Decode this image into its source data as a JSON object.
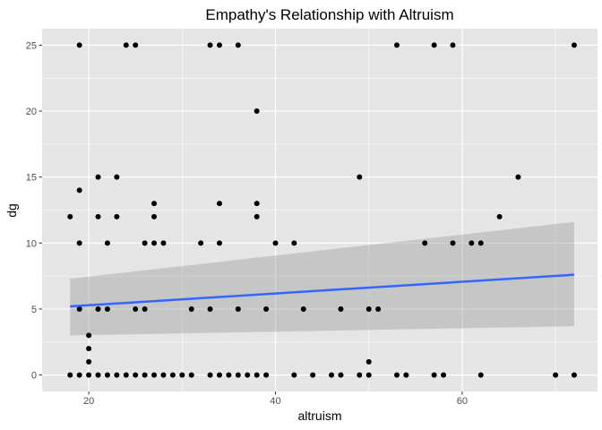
{
  "chart_data": {
    "type": "scatter",
    "title": "Empathy's Relationship with Altruism",
    "xlabel": "altruism",
    "ylabel": "dg",
    "xlim": [
      15,
      74.5
    ],
    "ylim": [
      -1.25,
      26.25
    ],
    "x_ticks": [
      20,
      40,
      60
    ],
    "y_ticks": [
      0,
      5,
      10,
      15,
      20,
      25
    ],
    "grid": true,
    "legend": "none",
    "colors": {
      "panel": "#e5e5e5",
      "grid_major": "#ffffff",
      "point": "#000000",
      "fit_line": "#3366ff",
      "ribbon": "#999999"
    },
    "points": [
      {
        "x": 18,
        "y": 12
      },
      {
        "x": 18,
        "y": 0
      },
      {
        "x": 19,
        "y": 25
      },
      {
        "x": 19,
        "y": 14
      },
      {
        "x": 19,
        "y": 10
      },
      {
        "x": 19,
        "y": 5
      },
      {
        "x": 19,
        "y": 0
      },
      {
        "x": 20,
        "y": 3
      },
      {
        "x": 20,
        "y": 2
      },
      {
        "x": 20,
        "y": 1
      },
      {
        "x": 20,
        "y": 0
      },
      {
        "x": 21,
        "y": 15
      },
      {
        "x": 21,
        "y": 12
      },
      {
        "x": 21,
        "y": 5
      },
      {
        "x": 21,
        "y": 0
      },
      {
        "x": 22,
        "y": 10
      },
      {
        "x": 22,
        "y": 5
      },
      {
        "x": 22,
        "y": 0
      },
      {
        "x": 23,
        "y": 15
      },
      {
        "x": 23,
        "y": 12
      },
      {
        "x": 23,
        "y": 0
      },
      {
        "x": 24,
        "y": 25
      },
      {
        "x": 24,
        "y": 0
      },
      {
        "x": 25,
        "y": 25
      },
      {
        "x": 25,
        "y": 5
      },
      {
        "x": 25,
        "y": 0
      },
      {
        "x": 26,
        "y": 10
      },
      {
        "x": 26,
        "y": 5
      },
      {
        "x": 26,
        "y": 0
      },
      {
        "x": 27,
        "y": 13
      },
      {
        "x": 27,
        "y": 12
      },
      {
        "x": 27,
        "y": 10
      },
      {
        "x": 27,
        "y": 0
      },
      {
        "x": 28,
        "y": 10
      },
      {
        "x": 28,
        "y": 0
      },
      {
        "x": 29,
        "y": 0
      },
      {
        "x": 30,
        "y": 0
      },
      {
        "x": 31,
        "y": 5
      },
      {
        "x": 31,
        "y": 0
      },
      {
        "x": 32,
        "y": 10
      },
      {
        "x": 33,
        "y": 25
      },
      {
        "x": 33,
        "y": 5
      },
      {
        "x": 33,
        "y": 0
      },
      {
        "x": 34,
        "y": 25
      },
      {
        "x": 34,
        "y": 13
      },
      {
        "x": 34,
        "y": 10
      },
      {
        "x": 34,
        "y": 0
      },
      {
        "x": 35,
        "y": 0
      },
      {
        "x": 36,
        "y": 25
      },
      {
        "x": 36,
        "y": 5
      },
      {
        "x": 36,
        "y": 0
      },
      {
        "x": 37,
        "y": 0
      },
      {
        "x": 38,
        "y": 20
      },
      {
        "x": 38,
        "y": 13
      },
      {
        "x": 38,
        "y": 12
      },
      {
        "x": 38,
        "y": 0
      },
      {
        "x": 39,
        "y": 5
      },
      {
        "x": 39,
        "y": 0
      },
      {
        "x": 40,
        "y": 10
      },
      {
        "x": 42,
        "y": 10
      },
      {
        "x": 42,
        "y": 0
      },
      {
        "x": 43,
        "y": 5
      },
      {
        "x": 44,
        "y": 0
      },
      {
        "x": 46,
        "y": 0
      },
      {
        "x": 47,
        "y": 5
      },
      {
        "x": 47,
        "y": 0
      },
      {
        "x": 49,
        "y": 15
      },
      {
        "x": 49,
        "y": 0
      },
      {
        "x": 50,
        "y": 5
      },
      {
        "x": 50,
        "y": 1
      },
      {
        "x": 50,
        "y": 0
      },
      {
        "x": 51,
        "y": 5
      },
      {
        "x": 53,
        "y": 25
      },
      {
        "x": 53,
        "y": 0
      },
      {
        "x": 54,
        "y": 0
      },
      {
        "x": 56,
        "y": 10
      },
      {
        "x": 57,
        "y": 25
      },
      {
        "x": 57,
        "y": 0
      },
      {
        "x": 58,
        "y": 0
      },
      {
        "x": 59,
        "y": 25
      },
      {
        "x": 59,
        "y": 10
      },
      {
        "x": 61,
        "y": 10
      },
      {
        "x": 62,
        "y": 10
      },
      {
        "x": 62,
        "y": 0
      },
      {
        "x": 64,
        "y": 12
      },
      {
        "x": 66,
        "y": 15
      },
      {
        "x": 70,
        "y": 0
      },
      {
        "x": 72,
        "y": 25
      },
      {
        "x": 72,
        "y": 0
      }
    ],
    "fit": {
      "method": "linear",
      "x": [
        18,
        72
      ],
      "y": [
        5.2,
        7.6
      ],
      "ci_lower": [
        3.0,
        3.7
      ],
      "ci_upper": [
        7.3,
        11.6
      ]
    }
  }
}
